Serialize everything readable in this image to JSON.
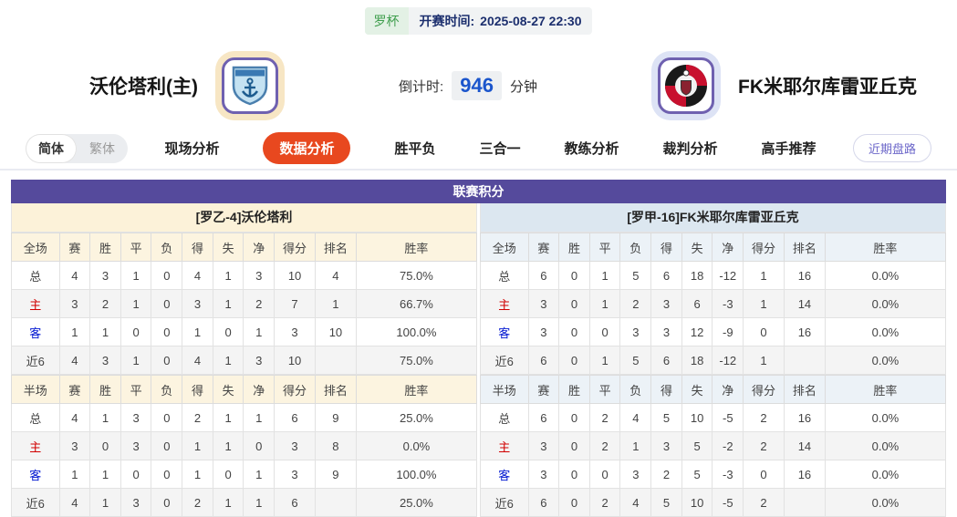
{
  "header": {
    "league_badge": "罗杯",
    "kickoff_label": "开赛时间:",
    "kickoff_time": "2025-08-27 22:30",
    "home_team": "沃伦塔利(主)",
    "away_team": "FK米耶尔库雷亚丘克",
    "countdown_label": "倒计时:",
    "countdown_value": "946",
    "countdown_unit": "分钟"
  },
  "nav": {
    "lang_simplified": "简体",
    "lang_traditional": "繁体",
    "tabs": [
      {
        "label": "现场分析",
        "active": false
      },
      {
        "label": "数据分析",
        "active": true
      },
      {
        "label": "胜平负",
        "active": false
      },
      {
        "label": "三合一",
        "active": false
      },
      {
        "label": "教练分析",
        "active": false
      },
      {
        "label": "裁判分析",
        "active": false
      },
      {
        "label": "高手推荐",
        "active": false
      }
    ],
    "recent_button": "近期盘路"
  },
  "tables": {
    "section_title": "联赛积分",
    "sides": [
      {
        "team_title": "[罗乙-4]沃伦塔利",
        "blocks": [
          {
            "headers": [
              "全场",
              "赛",
              "胜",
              "平",
              "负",
              "得",
              "失",
              "净",
              "得分",
              "排名",
              "胜率"
            ],
            "rows": [
              [
                "总",
                "4",
                "3",
                "1",
                "0",
                "4",
                "1",
                "3",
                "10",
                "4",
                "75.0%"
              ],
              [
                "主",
                "3",
                "2",
                "1",
                "0",
                "3",
                "1",
                "2",
                "7",
                "1",
                "66.7%"
              ],
              [
                "客",
                "1",
                "1",
                "0",
                "0",
                "1",
                "0",
                "1",
                "3",
                "10",
                "100.0%"
              ],
              [
                "近6",
                "4",
                "3",
                "1",
                "0",
                "4",
                "1",
                "3",
                "10",
                "",
                "75.0%"
              ]
            ]
          },
          {
            "headers": [
              "半场",
              "赛",
              "胜",
              "平",
              "负",
              "得",
              "失",
              "净",
              "得分",
              "排名",
              "胜率"
            ],
            "rows": [
              [
                "总",
                "4",
                "1",
                "3",
                "0",
                "2",
                "1",
                "1",
                "6",
                "9",
                "25.0%"
              ],
              [
                "主",
                "3",
                "0",
                "3",
                "0",
                "1",
                "1",
                "0",
                "3",
                "8",
                "0.0%"
              ],
              [
                "客",
                "1",
                "1",
                "0",
                "0",
                "1",
                "0",
                "1",
                "3",
                "9",
                "100.0%"
              ],
              [
                "近6",
                "4",
                "1",
                "3",
                "0",
                "2",
                "1",
                "1",
                "6",
                "",
                "25.0%"
              ]
            ]
          }
        ]
      },
      {
        "team_title": "[罗甲-16]FK米耶尔库雷亚丘克",
        "blocks": [
          {
            "headers": [
              "全场",
              "赛",
              "胜",
              "平",
              "负",
              "得",
              "失",
              "净",
              "得分",
              "排名",
              "胜率"
            ],
            "rows": [
              [
                "总",
                "6",
                "0",
                "1",
                "5",
                "6",
                "18",
                "-12",
                "1",
                "16",
                "0.0%"
              ],
              [
                "主",
                "3",
                "0",
                "1",
                "2",
                "3",
                "6",
                "-3",
                "1",
                "14",
                "0.0%"
              ],
              [
                "客",
                "3",
                "0",
                "0",
                "3",
                "3",
                "12",
                "-9",
                "0",
                "16",
                "0.0%"
              ],
              [
                "近6",
                "6",
                "0",
                "1",
                "5",
                "6",
                "18",
                "-12",
                "1",
                "",
                "0.0%"
              ]
            ]
          },
          {
            "headers": [
              "半场",
              "赛",
              "胜",
              "平",
              "负",
              "得",
              "失",
              "净",
              "得分",
              "排名",
              "胜率"
            ],
            "rows": [
              [
                "总",
                "6",
                "0",
                "2",
                "4",
                "5",
                "10",
                "-5",
                "2",
                "16",
                "0.0%"
              ],
              [
                "主",
                "3",
                "0",
                "2",
                "1",
                "3",
                "5",
                "-2",
                "2",
                "14",
                "0.0%"
              ],
              [
                "客",
                "3",
                "0",
                "0",
                "3",
                "2",
                "5",
                "-3",
                "0",
                "16",
                "0.0%"
              ],
              [
                "近6",
                "6",
                "0",
                "2",
                "4",
                "5",
                "10",
                "-5",
                "2",
                "",
                "0.0%"
              ]
            ]
          }
        ]
      }
    ]
  },
  "colors": {
    "panel_purple": "#554a9c",
    "tab_active_orange": "#e8481f",
    "home_row_red": "#d10000",
    "away_row_blue": "#0016d1",
    "countdown_blue": "#1b55cc",
    "badge_green": "#3f9e4d",
    "left_header_cream": "#fcf4e0",
    "right_header_blue": "#ecf2f7"
  }
}
